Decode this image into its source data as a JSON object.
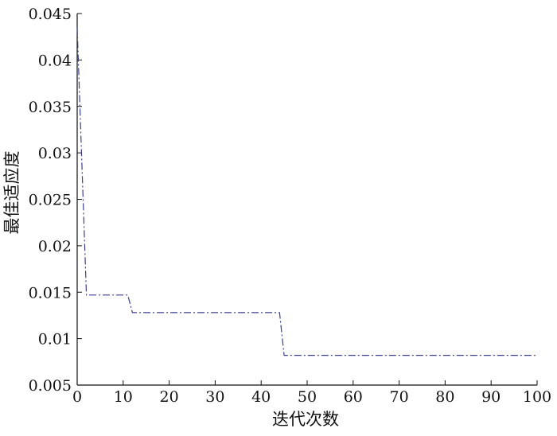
{
  "chart_data": {
    "type": "line",
    "title": "",
    "xlabel": "迭代次数",
    "ylabel": "最佳适应度",
    "xlim": [
      0,
      100
    ],
    "ylim": [
      0.005,
      0.045
    ],
    "x_ticks": [
      0,
      10,
      20,
      30,
      40,
      50,
      60,
      70,
      80,
      90,
      100
    ],
    "x_tick_labels": [
      "0",
      "10",
      "20",
      "30",
      "40",
      "50",
      "60",
      "70",
      "80",
      "90",
      "100"
    ],
    "y_ticks": [
      0.005,
      0.01,
      0.015,
      0.02,
      0.025,
      0.03,
      0.035,
      0.04,
      0.045
    ],
    "y_tick_labels": [
      "0.005",
      "0.01",
      "0.015",
      "0.02",
      "0.025",
      "0.03",
      "0.035",
      "0.04",
      "0.045"
    ],
    "grid": false,
    "legend": "none",
    "series": [
      {
        "color": "#3a3f8f",
        "line_style": "dash-dot",
        "x": [
          0,
          2,
          11,
          12,
          44,
          45,
          100
        ],
        "y": [
          0.0435,
          0.0147,
          0.0147,
          0.0128,
          0.0128,
          0.0082,
          0.0082
        ]
      }
    ]
  }
}
